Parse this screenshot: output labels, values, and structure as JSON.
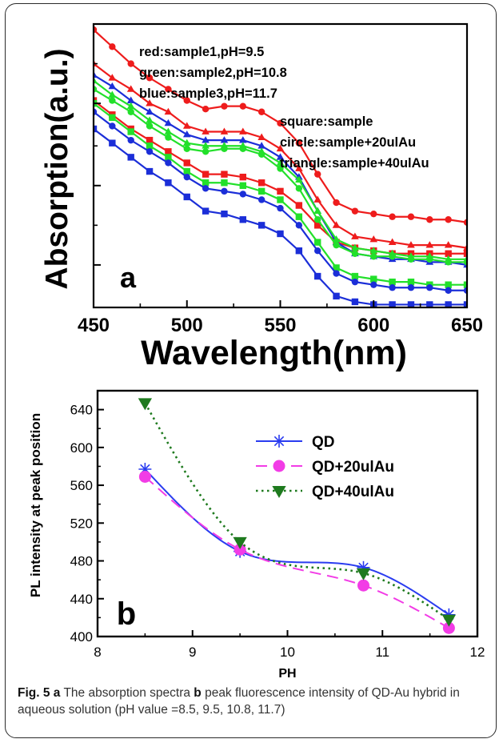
{
  "chart_data": [
    {
      "type": "line",
      "panel_label": "a",
      "xlabel": "Wavelength(nm)",
      "ylabel": "Absorption(a.u.)",
      "xlim": [
        450,
        650
      ],
      "ylim": [
        0,
        1
      ],
      "xticks": [
        "450",
        "500",
        "550",
        "600",
        "650"
      ],
      "y_ticks_unlabeled": true,
      "grid": false,
      "legend_text": [
        "red:sample1,pH=9.5",
        "green:sample2,pH=10.8",
        "blue:sample3,pH=11.7",
        "square:sample",
        "circle:sample+20ulAu",
        "triangle:sample+40ulAu"
      ],
      "colors": {
        "red": "#ee1c1c",
        "green": "#22e02a",
        "blue": "#1b2ed8"
      },
      "x": [
        450,
        460,
        470,
        480,
        490,
        500,
        510,
        520,
        530,
        540,
        550,
        560,
        570,
        580,
        590,
        600,
        610,
        620,
        630,
        640,
        650
      ],
      "series": [
        {
          "color": "red",
          "marker": "circle",
          "values": [
            0.98,
            0.92,
            0.86,
            0.81,
            0.77,
            0.73,
            0.7,
            0.71,
            0.71,
            0.69,
            0.65,
            0.58,
            0.47,
            0.37,
            0.34,
            0.33,
            0.32,
            0.32,
            0.31,
            0.31,
            0.3
          ]
        },
        {
          "color": "red",
          "marker": "triangle",
          "values": [
            0.86,
            0.81,
            0.77,
            0.72,
            0.69,
            0.64,
            0.62,
            0.62,
            0.62,
            0.6,
            0.56,
            0.49,
            0.38,
            0.29,
            0.25,
            0.24,
            0.23,
            0.22,
            0.22,
            0.22,
            0.21
          ]
        },
        {
          "color": "red",
          "marker": "square",
          "values": [
            0.73,
            0.68,
            0.63,
            0.59,
            0.55,
            0.51,
            0.47,
            0.47,
            0.46,
            0.44,
            0.41,
            0.36,
            0.29,
            0.23,
            0.21,
            0.2,
            0.19,
            0.19,
            0.19,
            0.19,
            0.19
          ]
        },
        {
          "color": "blue",
          "marker": "triangle",
          "values": [
            0.82,
            0.78,
            0.73,
            0.69,
            0.65,
            0.61,
            0.59,
            0.59,
            0.59,
            0.57,
            0.53,
            0.46,
            0.34,
            0.23,
            0.19,
            0.18,
            0.17,
            0.17,
            0.16,
            0.16,
            0.15
          ]
        },
        {
          "color": "green",
          "marker": "triangle",
          "values": [
            0.8,
            0.75,
            0.71,
            0.66,
            0.62,
            0.58,
            0.57,
            0.57,
            0.57,
            0.55,
            0.51,
            0.45,
            0.34,
            0.24,
            0.21,
            0.2,
            0.19,
            0.18,
            0.18,
            0.17,
            0.17
          ]
        },
        {
          "color": "green",
          "marker": "circle",
          "values": [
            0.77,
            0.73,
            0.69,
            0.64,
            0.6,
            0.56,
            0.55,
            0.56,
            0.56,
            0.54,
            0.49,
            0.42,
            0.31,
            0.22,
            0.19,
            0.18,
            0.18,
            0.17,
            0.17,
            0.16,
            0.16
          ]
        },
        {
          "color": "green",
          "marker": "square",
          "values": [
            0.72,
            0.67,
            0.62,
            0.57,
            0.53,
            0.48,
            0.44,
            0.44,
            0.43,
            0.41,
            0.38,
            0.32,
            0.23,
            0.14,
            0.11,
            0.1,
            0.09,
            0.09,
            0.08,
            0.08,
            0.08
          ]
        },
        {
          "color": "blue",
          "marker": "circle",
          "values": [
            0.69,
            0.64,
            0.59,
            0.55,
            0.51,
            0.46,
            0.42,
            0.41,
            0.4,
            0.38,
            0.35,
            0.29,
            0.2,
            0.12,
            0.09,
            0.08,
            0.07,
            0.07,
            0.07,
            0.06,
            0.06
          ]
        },
        {
          "color": "blue",
          "marker": "square",
          "values": [
            0.63,
            0.58,
            0.53,
            0.48,
            0.44,
            0.39,
            0.34,
            0.33,
            0.31,
            0.29,
            0.26,
            0.2,
            0.11,
            0.04,
            0.02,
            0.01,
            0.01,
            0.01,
            0.01,
            0.01,
            0.01
          ]
        }
      ]
    },
    {
      "type": "line",
      "panel_label": "b",
      "xlabel": "PH",
      "ylabel": "PL intensity at peak position",
      "xlim": [
        8,
        12
      ],
      "ylim": [
        400,
        660
      ],
      "xticks": [
        8,
        9,
        10,
        11,
        12
      ],
      "yticks": [
        400,
        440,
        480,
        520,
        560,
        600,
        640
      ],
      "grid": false,
      "legend_position": "top-right",
      "x": [
        8.5,
        9.5,
        10.8,
        11.7
      ],
      "series": [
        {
          "name": "QD",
          "color": "#2a3cf0",
          "marker": "asterisk",
          "line": "solid",
          "values": [
            577,
            490,
            473,
            423
          ]
        },
        {
          "name": "QD+20ulAu",
          "color": "#f23ce6",
          "marker": "circle",
          "line": "dashed",
          "values": [
            569,
            492,
            454,
            409
          ]
        },
        {
          "name": "QD+40ulAu",
          "color": "#1e7a1e",
          "marker": "triangle-down",
          "line": "dotted",
          "values": [
            647,
            500,
            467,
            418
          ]
        }
      ]
    }
  ],
  "caption": {
    "fig_label": "Fig. 5",
    "part_a_label": "a",
    "part_a_text": " The absorption spectra ",
    "part_b_label": "b",
    "part_b_text": " peak fluorescence intensity of QD-Au hybrid in aqueous solution (pH value =8.5, 9.5, 10.8, 11.7)"
  }
}
